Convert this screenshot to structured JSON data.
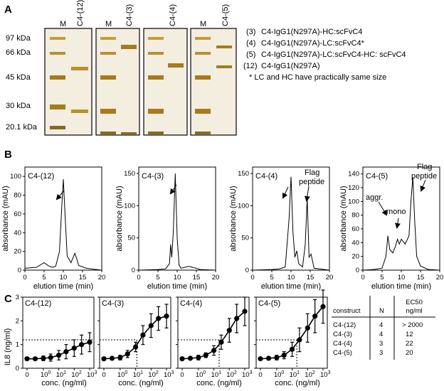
{
  "panel_a": {
    "letter": "A",
    "mw_markers": [
      "97 kDa",
      "66 kDa",
      "45 kDa",
      "30 kDa",
      "20.1 kDa"
    ],
    "gels": [
      {
        "lanes": [
          "M",
          "C4-(12)"
        ]
      },
      {
        "lanes": [
          "M",
          "C4-(3)"
        ]
      },
      {
        "lanes": [
          "C4-(4)"
        ]
      },
      {
        "lanes": [
          "M",
          "C4-(5)"
        ]
      }
    ],
    "legend": [
      {
        "num": "(3)",
        "text": "C4-IgG1(N297A)-HC:scFvC4"
      },
      {
        "num": "(4)",
        "text": "C4-IgG1(N297A)-LC:scFvC4*"
      },
      {
        "num": "(5)",
        "text": "C4-IgG1(N297A)-LC:scFvC4-HC: scFvC4"
      },
      {
        "num": "(12)",
        "text": "C4-IgG1(N297A)"
      }
    ],
    "note": "* LC and HC have practically same size"
  },
  "panel_b": {
    "letter": "B",
    "charts": [
      {
        "title": "C4-(12)",
        "ylabel": "absorbance (mAU)",
        "xlabel": "elution time (min)",
        "yticks": [
          "0",
          "20",
          "40",
          "60",
          "80",
          "100"
        ],
        "xticks": [
          "0",
          "5",
          "10",
          "15",
          "20"
        ],
        "annotations": []
      },
      {
        "title": "C4-(3)",
        "ylabel": "absorbance (mAU)",
        "xlabel": "elution time (min)",
        "yticks": [
          "0",
          "50",
          "100",
          "150"
        ],
        "xticks": [
          "0",
          "5",
          "10",
          "15",
          "20"
        ],
        "annotations": []
      },
      {
        "title": "C4-(4)",
        "ylabel": "absorbance (mAU)",
        "xlabel": "elution time (min)",
        "yticks": [
          "0",
          "50",
          "100",
          "150"
        ],
        "xticks": [
          "0",
          "5",
          "10",
          "15",
          "20"
        ],
        "annotations": [
          "Flag",
          "peptide"
        ]
      },
      {
        "title": "C4-(5)",
        "ylabel": "absorbance (mAU)",
        "xlabel": "elution time (min)",
        "yticks": [
          "0",
          "20",
          "40",
          "60",
          "80",
          "100",
          "120",
          "140"
        ],
        "xticks": [
          "0",
          "5",
          "10",
          "15",
          "20"
        ],
        "annotations": [
          "Flag",
          "peptide",
          "aggr.",
          "mono"
        ]
      }
    ]
  },
  "panel_c": {
    "letter": "C",
    "ylabel": "IL8 (ng/ml)",
    "xlabel": "conc. (ng/ml)",
    "yticks": [
      "0",
      "1",
      "2",
      "3"
    ],
    "charts": [
      {
        "title": "C4-(12)"
      },
      {
        "title": "C4-(3)"
      },
      {
        "title": "C4-(4)"
      },
      {
        "title": "C4-(5)"
      }
    ],
    "table": {
      "headers": [
        "construct",
        "N",
        "EC50",
        "ng/ml"
      ],
      "rows": [
        {
          "construct": "C4-(12)",
          "n": "4",
          "ec50": "> 2000"
        },
        {
          "construct": "C4-(3)",
          "n": "4",
          "ec50": "12"
        },
        {
          "construct": "C4-(4)",
          "n": "3",
          "ec50": "22"
        },
        {
          "construct": "C4-(5)",
          "n": "3",
          "ec50": "20"
        }
      ]
    }
  },
  "chart_data": [
    {
      "type": "line",
      "title": "C4-(12)",
      "xlabel": "elution time (min)",
      "ylabel": "absorbance (mAU)",
      "xlim": [
        0,
        20
      ],
      "ylim": [
        0,
        110
      ],
      "x": [
        0,
        3,
        5,
        6,
        7,
        8,
        9,
        9.5,
        10,
        10.5,
        11,
        12,
        13,
        13.5,
        14,
        16,
        18,
        20
      ],
      "y": [
        2,
        3,
        8,
        5,
        3,
        4,
        20,
        60,
        97,
        55,
        15,
        8,
        18,
        12,
        5,
        2,
        1,
        0
      ]
    },
    {
      "type": "line",
      "title": "C4-(3)",
      "xlabel": "elution time (min)",
      "ylabel": "absorbance (mAU)",
      "xlim": [
        0,
        20
      ],
      "ylim": [
        0,
        160
      ],
      "x": [
        0,
        5,
        7,
        8,
        8.3,
        8.6,
        9,
        9.5,
        10,
        10.5,
        11,
        13,
        15,
        16,
        20
      ],
      "y": [
        0,
        1,
        2,
        10,
        40,
        20,
        60,
        150,
        50,
        8,
        3,
        6,
        3,
        1,
        0
      ]
    },
    {
      "type": "line",
      "title": "C4-(4)",
      "xlabel": "elution time (min)",
      "ylabel": "absorbance (mAU)",
      "xlim": [
        0,
        20
      ],
      "ylim": [
        0,
        160
      ],
      "x": [
        0,
        5,
        7,
        8.5,
        9.5,
        10,
        10.5,
        11,
        11.5,
        12,
        13,
        13.7,
        14.2,
        14.7,
        15.2,
        16,
        20
      ],
      "y": [
        0,
        1,
        2,
        5,
        80,
        145,
        60,
        20,
        30,
        10,
        5,
        40,
        112,
        20,
        25,
        3,
        0
      ]
    },
    {
      "type": "line",
      "title": "C4-(5)",
      "xlabel": "elution time (min)",
      "ylabel": "absorbance (mAU)",
      "xlim": [
        0,
        20
      ],
      "ylim": [
        0,
        150
      ],
      "x": [
        0,
        3,
        5,
        6,
        6.5,
        7,
        7.8,
        8.5,
        9,
        9.5,
        10,
        11,
        12,
        12.5,
        13,
        13.5,
        14,
        15,
        17,
        20
      ],
      "y": [
        0,
        1,
        3,
        20,
        50,
        30,
        25,
        35,
        45,
        38,
        45,
        38,
        50,
        100,
        135,
        70,
        20,
        6,
        1,
        0
      ]
    },
    {
      "type": "line",
      "title": "C4-(12)",
      "xlabel": "conc. (ng/ml)",
      "ylabel": "IL8 (ng/ml)",
      "ylim": [
        0,
        3
      ],
      "x": [
        0,
        0.3,
        1,
        3,
        10,
        30,
        100,
        300,
        1000
      ],
      "y": [
        0.4,
        0.4,
        0.42,
        0.45,
        0.55,
        0.7,
        0.85,
        1.0,
        1.1
      ],
      "err": [
        0.05,
        0.05,
        0.1,
        0.15,
        0.2,
        0.3,
        0.35,
        0.4,
        0.4
      ]
    },
    {
      "type": "line",
      "title": "C4-(3)",
      "xlabel": "conc. (ng/ml)",
      "ylabel": "IL8 (ng/ml)",
      "ylim": [
        0,
        3
      ],
      "x": [
        0,
        0.3,
        1,
        3,
        10,
        30,
        100,
        300,
        1000
      ],
      "y": [
        0.4,
        0.42,
        0.45,
        0.6,
        0.9,
        1.4,
        1.8,
        2.1,
        2.2
      ],
      "err": [
        0.05,
        0.05,
        0.1,
        0.15,
        0.2,
        0.4,
        0.5,
        0.5,
        0.5
      ]
    },
    {
      "type": "line",
      "title": "C4-(4)",
      "xlabel": "conc. (ng/ml)",
      "ylabel": "IL8 (ng/ml)",
      "ylim": [
        0,
        3
      ],
      "x": [
        0,
        0.3,
        1,
        3,
        10,
        30,
        100,
        300,
        1000
      ],
      "y": [
        0.4,
        0.42,
        0.45,
        0.55,
        0.75,
        1.1,
        1.6,
        2.1,
        2.4
      ],
      "err": [
        0.05,
        0.05,
        0.1,
        0.1,
        0.2,
        0.3,
        0.5,
        0.6,
        0.6
      ]
    },
    {
      "type": "line",
      "title": "C4-(5)",
      "xlabel": "conc. (ng/ml)",
      "ylabel": "IL8 (ng/ml)",
      "ylim": [
        0,
        3
      ],
      "x": [
        0,
        0.3,
        1,
        3,
        10,
        30,
        100,
        300,
        1000
      ],
      "y": [
        0.4,
        0.42,
        0.45,
        0.55,
        0.8,
        1.2,
        1.7,
        2.2,
        2.6
      ],
      "err": [
        0.05,
        0.05,
        0.1,
        0.15,
        0.3,
        0.5,
        0.6,
        0.7,
        0.7
      ]
    }
  ]
}
